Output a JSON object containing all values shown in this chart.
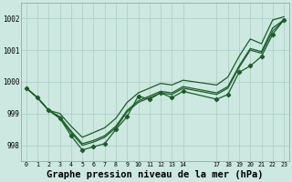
{
  "bg_color": "#cce8e0",
  "grid_color": "#aaccc4",
  "line_color": "#1a5e28",
  "title": "Graphe pression niveau de la mer (hPa)",
  "title_fontsize": 7.5,
  "ylim": [
    997.5,
    1002.5
  ],
  "yticks": [
    998,
    999,
    1000,
    1001,
    1002
  ],
  "xlim": [
    -0.5,
    23.5
  ],
  "xticks": [
    0,
    1,
    2,
    3,
    4,
    5,
    6,
    7,
    8,
    9,
    10,
    11,
    12,
    13,
    14,
    17,
    18,
    19,
    20,
    21,
    22,
    23
  ],
  "xtick_labels": [
    "0",
    "1",
    "2",
    "3",
    "4",
    "5",
    "6",
    "7",
    "8",
    "9",
    "10",
    "11",
    "12",
    "13",
    "14",
    "17",
    "18",
    "19",
    "20",
    "21",
    "22",
    "23"
  ],
  "line_upper_x": [
    0,
    1,
    2,
    3,
    4,
    5,
    6,
    7,
    8,
    9,
    10,
    11,
    12,
    13,
    14,
    17,
    18,
    19,
    20,
    21,
    22,
    23
  ],
  "line_upper_y": [
    999.8,
    999.5,
    999.1,
    999.0,
    998.6,
    998.25,
    998.4,
    998.55,
    998.85,
    999.35,
    999.65,
    999.8,
    999.95,
    999.9,
    1000.05,
    999.9,
    1000.15,
    1000.8,
    1001.35,
    1001.2,
    1001.95,
    1002.05
  ],
  "line_mid1_x": [
    0,
    1,
    2,
    3,
    4,
    5,
    6,
    7,
    8,
    9,
    10,
    11,
    12,
    13,
    14,
    17,
    18,
    19,
    20,
    21,
    22,
    23
  ],
  "line_mid1_y": [
    999.8,
    999.5,
    999.1,
    998.9,
    998.45,
    998.05,
    998.15,
    998.3,
    998.6,
    999.1,
    999.4,
    999.55,
    999.7,
    999.65,
    999.85,
    999.65,
    999.85,
    1000.5,
    1001.05,
    1000.95,
    1001.7,
    1001.95
  ],
  "line_mid2_x": [
    0,
    1,
    2,
    3,
    4,
    5,
    6,
    7,
    8,
    9,
    10,
    11,
    12,
    13,
    14,
    17,
    18,
    19,
    20,
    21,
    22,
    23
  ],
  "line_mid2_y": [
    999.8,
    999.5,
    999.1,
    998.85,
    998.4,
    998.0,
    998.1,
    998.25,
    998.55,
    999.05,
    999.35,
    999.5,
    999.65,
    999.6,
    999.8,
    999.6,
    999.8,
    1000.45,
    1001.0,
    1000.9,
    1001.6,
    1001.95
  ],
  "line_marked_x": [
    0,
    1,
    2,
    3,
    4,
    5,
    6,
    7,
    8,
    9,
    10,
    11,
    12,
    13,
    14,
    17,
    18,
    19,
    20,
    21,
    22,
    23
  ],
  "line_marked_y": [
    999.8,
    999.5,
    999.1,
    998.85,
    998.3,
    997.85,
    997.95,
    998.05,
    998.5,
    998.9,
    999.55,
    999.45,
    999.65,
    999.5,
    999.7,
    999.45,
    999.6,
    1000.3,
    1000.5,
    1000.8,
    1001.5,
    1001.95
  ]
}
